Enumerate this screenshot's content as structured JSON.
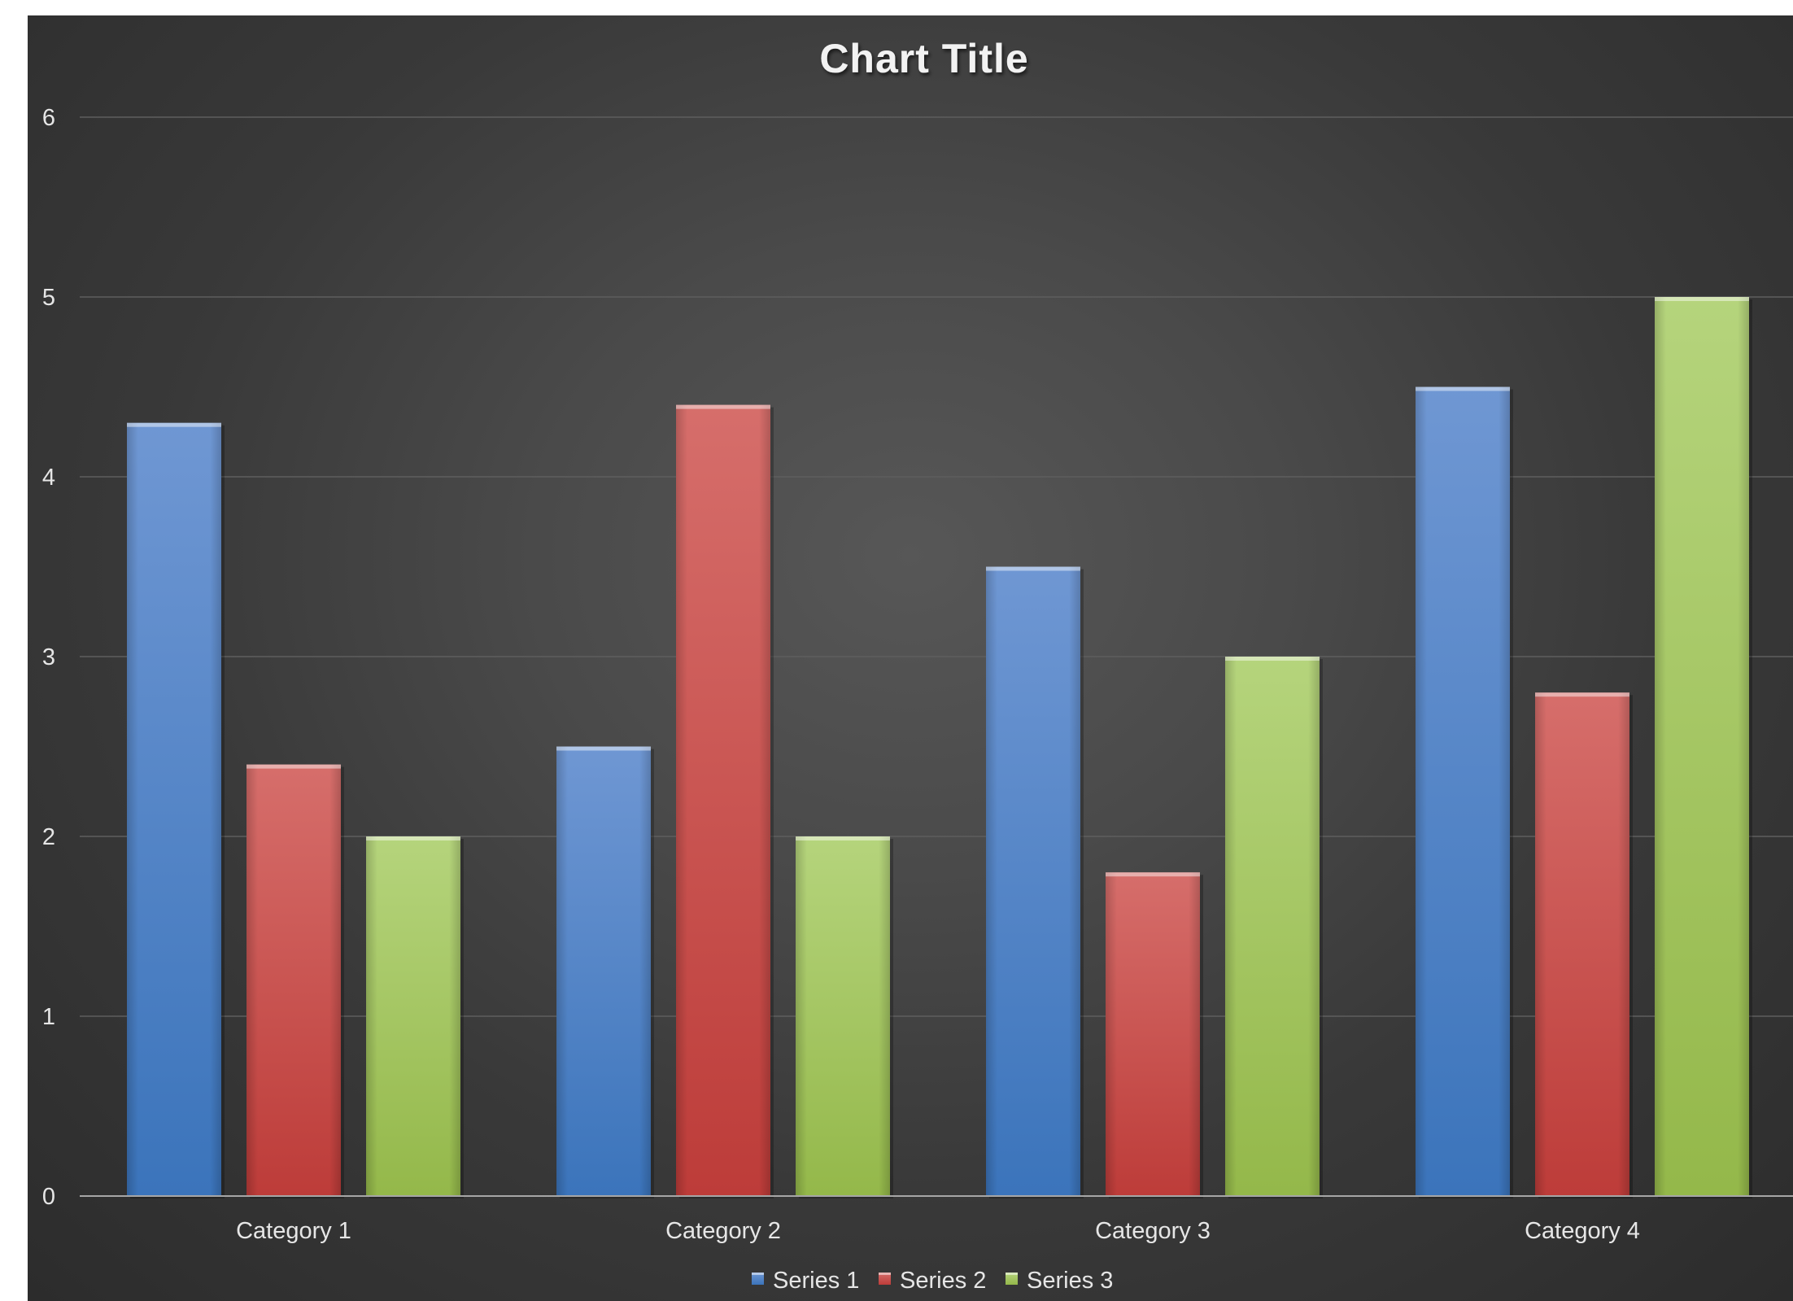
{
  "chart_data": {
    "type": "bar",
    "title": "Chart Title",
    "xlabel": "",
    "ylabel": "",
    "categories": [
      "Category 1",
      "Category 2",
      "Category 3",
      "Category 4"
    ],
    "series": [
      {
        "name": "Series 1",
        "values": [
          4.3,
          2.5,
          3.5,
          4.5
        ],
        "color": "#4f81bd"
      },
      {
        "name": "Series 2",
        "values": [
          2.4,
          4.4,
          1.8,
          2.8
        ],
        "color": "#c0504d"
      },
      {
        "name": "Series 3",
        "values": [
          2,
          2,
          3,
          5
        ],
        "color": "#9bbb59"
      }
    ],
    "ylim": [
      0,
      6
    ],
    "yticks": [
      0,
      1,
      2,
      3,
      4,
      5,
      6
    ],
    "grid": true,
    "legend": "bottom",
    "background": "dark-gradient"
  }
}
